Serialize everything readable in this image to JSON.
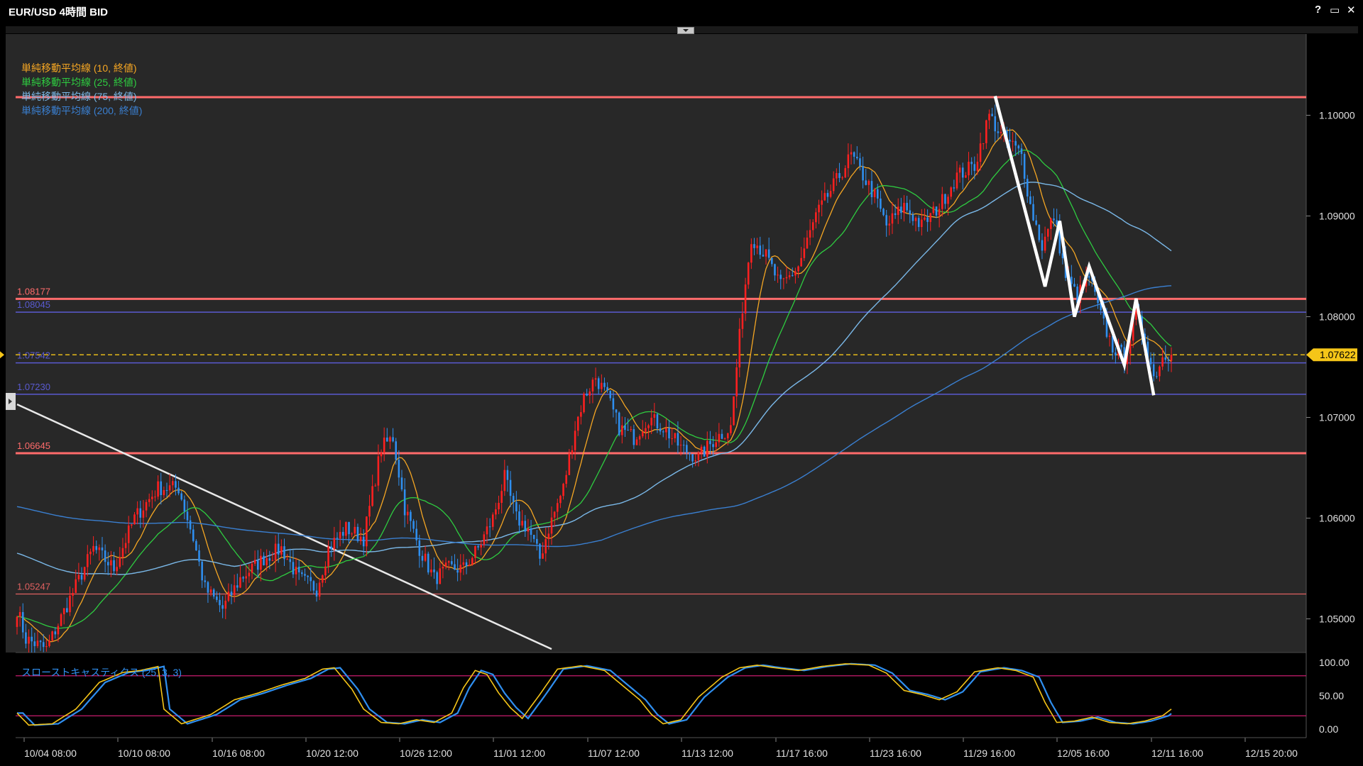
{
  "window": {
    "title": "EUR/USD 4時間 BID",
    "buttons": [
      "?",
      "▭",
      "✕"
    ]
  },
  "legend": [
    {
      "label": "単純移動平均線 (10, 終値)",
      "color": "#f5a623"
    },
    {
      "label": "単純移動平均線 (25, 終値)",
      "color": "#2ecc40"
    },
    {
      "label": "単純移動平均線 (75, 終値)",
      "color": "#7ab8e8"
    },
    {
      "label": "単純移動平均線 (200, 終値)",
      "color": "#3a7fd0"
    }
  ],
  "oscillator_label": "スローストキャスティクス (25, 3, 3)",
  "current_price": "1.07622",
  "chart_data": {
    "type": "candlestick",
    "title": "EUR/USD 4時間 BID",
    "ylim": [
      1.0468,
      1.1075
    ],
    "y_ticks": [
      "1.10000",
      "1.09000",
      "1.08000",
      "1.07000",
      "1.06000",
      "1.05000"
    ],
    "x_ticks": [
      "10/04 08:00",
      "10/10 08:00",
      "10/16 08:00",
      "10/20 12:00",
      "10/26 12:00",
      "11/01 12:00",
      "11/07 12:00",
      "11/13 12:00",
      "11/17 16:00",
      "11/23 16:00",
      "11/29 16:00",
      "12/05 16:00",
      "12/11 16:00",
      "12/15 20:00"
    ],
    "horizontal_lines": [
      {
        "label": "",
        "value": 1.1018,
        "color": "#ff6b6b",
        "width": 3
      },
      {
        "label": "1.08177",
        "value": 1.08177,
        "color": "#ff6b6b",
        "width": 3
      },
      {
        "label": "1.08045",
        "value": 1.08045,
        "color": "#5a5ad0",
        "width": 1.5
      },
      {
        "label": "1.07542",
        "value": 1.07542,
        "color": "#5a5ad0",
        "width": 1.5
      },
      {
        "label": "1.07230",
        "value": 1.0723,
        "color": "#5a5ad0",
        "width": 1.5
      },
      {
        "label": "1.06645",
        "value": 1.06645,
        "color": "#ff6b6b",
        "width": 3
      },
      {
        "label": "1.05247",
        "value": 1.05247,
        "color": "#e06060",
        "width": 1.2
      }
    ],
    "trendline_from": [
      0,
      1.0713
    ],
    "trendline_to": [
      182,
      1.047
    ],
    "wave": [
      [
        333,
        1.1019
      ],
      [
        350,
        1.083
      ],
      [
        355,
        1.0895
      ],
      [
        360,
        1.08
      ],
      [
        365,
        1.085
      ],
      [
        377,
        1.0752
      ],
      [
        381,
        1.0818
      ],
      [
        387,
        1.0722
      ]
    ],
    "anchors": [
      [
        0,
        1.051
      ],
      [
        3,
        1.048
      ],
      [
        10,
        1.047
      ],
      [
        18,
        1.052
      ],
      [
        26,
        1.057
      ],
      [
        33,
        1.055
      ],
      [
        40,
        1.06
      ],
      [
        48,
        1.063
      ],
      [
        55,
        1.063
      ],
      [
        60,
        1.058
      ],
      [
        64,
        1.053
      ],
      [
        70,
        1.051
      ],
      [
        76,
        1.054
      ],
      [
        84,
        1.056
      ],
      [
        90,
        1.057
      ],
      [
        96,
        1.054
      ],
      [
        102,
        1.053
      ],
      [
        106,
        1.057
      ],
      [
        112,
        1.059
      ],
      [
        118,
        1.058
      ],
      [
        124,
        1.067
      ],
      [
        128,
        1.068
      ],
      [
        132,
        1.061
      ],
      [
        137,
        1.057
      ],
      [
        142,
        1.054
      ],
      [
        147,
        1.055
      ],
      [
        152,
        1.055
      ],
      [
        157,
        1.057
      ],
      [
        162,
        1.06
      ],
      [
        166,
        1.064
      ],
      [
        170,
        1.06
      ],
      [
        174,
        1.059
      ],
      [
        178,
        1.056
      ],
      [
        181,
        1.059
      ],
      [
        186,
        1.063
      ],
      [
        190,
        1.069
      ],
      [
        193,
        1.072
      ],
      [
        197,
        1.074
      ],
      [
        201,
        1.072
      ],
      [
        205,
        1.069
      ],
      [
        210,
        1.068
      ],
      [
        215,
        1.07
      ],
      [
        220,
        1.069
      ],
      [
        226,
        1.067
      ],
      [
        232,
        1.066
      ],
      [
        238,
        1.068
      ],
      [
        243,
        1.069
      ],
      [
        247,
        1.081
      ],
      [
        250,
        1.088
      ],
      [
        255,
        1.086
      ],
      [
        260,
        1.083
      ],
      [
        266,
        1.085
      ],
      [
        272,
        1.09
      ],
      [
        278,
        1.093
      ],
      [
        284,
        1.096
      ],
      [
        288,
        1.094
      ],
      [
        292,
        1.092
      ],
      [
        296,
        1.089
      ],
      [
        302,
        1.091
      ],
      [
        308,
        1.089
      ],
      [
        314,
        1.091
      ],
      [
        320,
        1.094
      ],
      [
        326,
        1.095
      ],
      [
        331,
        1.1
      ],
      [
        335,
        1.098
      ],
      [
        339,
        1.097
      ],
      [
        342,
        1.096
      ],
      [
        345,
        1.091
      ],
      [
        349,
        1.087
      ],
      [
        353,
        1.09
      ],
      [
        357,
        1.084
      ],
      [
        361,
        1.082
      ],
      [
        365,
        1.084
      ],
      [
        369,
        1.08
      ],
      [
        373,
        1.077
      ],
      [
        377,
        1.076
      ],
      [
        381,
        1.08
      ],
      [
        384,
        1.078
      ],
      [
        387,
        1.074
      ],
      [
        390,
        1.076
      ],
      [
        393,
        1.0765
      ]
    ],
    "n_candles": 394,
    "ma_periods": [
      10,
      25,
      75,
      200
    ],
    "stochastic": {
      "ylim": [
        0,
        100
      ],
      "ticks": [
        "100.00",
        "50.00",
        "0.00"
      ],
      "levels": [
        80,
        20
      ],
      "anchors": [
        [
          0,
          24
        ],
        [
          4,
          6
        ],
        [
          12,
          8
        ],
        [
          20,
          30
        ],
        [
          28,
          70
        ],
        [
          36,
          85
        ],
        [
          42,
          88
        ],
        [
          48,
          94
        ],
        [
          50,
          30
        ],
        [
          56,
          8
        ],
        [
          66,
          22
        ],
        [
          74,
          44
        ],
        [
          82,
          54
        ],
        [
          90,
          66
        ],
        [
          98,
          76
        ],
        [
          104,
          90
        ],
        [
          108,
          92
        ],
        [
          114,
          60
        ],
        [
          118,
          30
        ],
        [
          124,
          10
        ],
        [
          130,
          8
        ],
        [
          136,
          14
        ],
        [
          142,
          10
        ],
        [
          148,
          24
        ],
        [
          152,
          62
        ],
        [
          156,
          88
        ],
        [
          160,
          82
        ],
        [
          164,
          54
        ],
        [
          168,
          32
        ],
        [
          172,
          16
        ],
        [
          178,
          52
        ],
        [
          184,
          90
        ],
        [
          192,
          95
        ],
        [
          200,
          88
        ],
        [
          206,
          66
        ],
        [
          212,
          44
        ],
        [
          216,
          22
        ],
        [
          220,
          8
        ],
        [
          226,
          14
        ],
        [
          232,
          48
        ],
        [
          240,
          78
        ],
        [
          246,
          92
        ],
        [
          252,
          96
        ],
        [
          258,
          92
        ],
        [
          266,
          88
        ],
        [
          274,
          94
        ],
        [
          282,
          98
        ],
        [
          290,
          96
        ],
        [
          296,
          84
        ],
        [
          302,
          58
        ],
        [
          308,
          52
        ],
        [
          314,
          44
        ],
        [
          320,
          56
        ],
        [
          326,
          86
        ],
        [
          334,
          92
        ],
        [
          340,
          88
        ],
        [
          346,
          78
        ],
        [
          350,
          40
        ],
        [
          354,
          10
        ],
        [
          360,
          12
        ],
        [
          366,
          18
        ],
        [
          372,
          10
        ],
        [
          378,
          8
        ],
        [
          384,
          12
        ],
        [
          390,
          20
        ],
        [
          393,
          30
        ]
      ]
    }
  }
}
